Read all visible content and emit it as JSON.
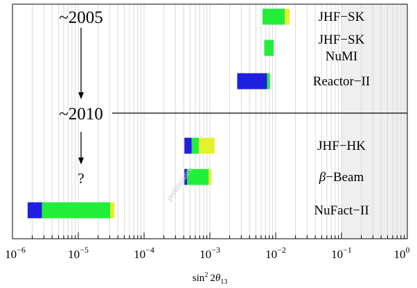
{
  "chart_data": {
    "type": "bar",
    "orientation": "horizontal",
    "x_scale": "log",
    "xlim": [
      1e-06,
      1
    ],
    "xticks": [
      {
        "value": 1e-06,
        "base": "10",
        "exp": "−6"
      },
      {
        "value": 1e-05,
        "base": "10",
        "exp": "−5"
      },
      {
        "value": 0.0001,
        "base": "10",
        "exp": "−4"
      },
      {
        "value": 0.001,
        "base": "10",
        "exp": "−3"
      },
      {
        "value": 0.01,
        "base": "10",
        "exp": "−2"
      },
      {
        "value": 0.1,
        "base": "10",
        "exp": "−1"
      },
      {
        "value": 1,
        "base": "10",
        "exp": "0"
      }
    ],
    "xlabel_parts": {
      "a": "sin",
      "sup": "2",
      "b": "2",
      "theta": "θ",
      "sub": "13"
    },
    "grid": "minor and major vertical lines",
    "excluded_region": [
      0.1,
      1
    ],
    "colors": {
      "blue": "#1f1fe0",
      "green": "#22ee3a",
      "yellow": "#e6f02c",
      "grid": "#d8d8d8",
      "shade": "#efefef"
    },
    "eras": [
      {
        "label": "~2005",
        "row": 0
      },
      {
        "label": "~2010",
        "row": 3,
        "divider": true
      }
    ],
    "question_mark": {
      "text": "?",
      "row": 5
    },
    "watermark": "preliminary",
    "experiments": [
      {
        "name": "JHF−SK",
        "segments": [
          {
            "color": "green",
            "from": 0.0063,
            "to": 0.0137
          },
          {
            "color": "yellow",
            "from": 0.0137,
            "to": 0.0163
          }
        ]
      },
      {
        "name": "JHF−SK\nNuMI",
        "segments": [
          {
            "color": "green",
            "from": 0.0067,
            "to": 0.0093
          }
        ]
      },
      {
        "name": "Reactor−II",
        "segments": [
          {
            "color": "blue",
            "from": 0.0026,
            "to": 0.0074
          },
          {
            "color": "green",
            "from": 0.0074,
            "to": 0.0082
          }
        ]
      },
      {
        "name": "JHF−HK",
        "segments": [
          {
            "color": "blue",
            "from": 0.00041,
            "to": 0.00053
          },
          {
            "color": "green",
            "from": 0.00053,
            "to": 0.00068
          },
          {
            "color": "yellow",
            "from": 0.00068,
            "to": 0.00118
          }
        ]
      },
      {
        "name": "β−Beam",
        "segments": [
          {
            "color": "blue",
            "from": 0.00041,
            "to": 0.00045
          },
          {
            "color": "green",
            "from": 0.00045,
            "to": 0.00096
          },
          {
            "color": "yellow",
            "from": 0.00096,
            "to": 0.00105
          }
        ]
      },
      {
        "name": "NuFact−II",
        "segments": [
          {
            "color": "blue",
            "from": 1.7e-06,
            "to": 2.8e-06
          },
          {
            "color": "green",
            "from": 2.8e-06,
            "to": 3.05e-05
          },
          {
            "color": "yellow",
            "from": 3.05e-05,
            "to": 3.55e-05
          }
        ]
      }
    ]
  }
}
